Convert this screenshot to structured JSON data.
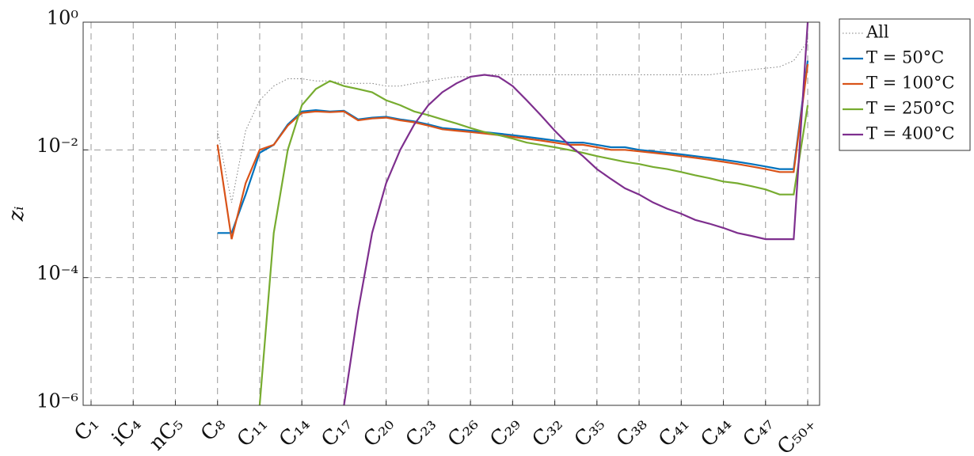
{
  "chart_data": {
    "type": "line",
    "y_label": "zᵢ",
    "yscale": "log",
    "grid": true,
    "legend": "outside-right-top",
    "categories": [
      "C₁",
      null,
      null,
      "iC₄",
      null,
      null,
      "nC₅",
      null,
      null,
      "C₈",
      null,
      null,
      "C₁₁",
      null,
      null,
      "C₁₄",
      null,
      null,
      "C₁₇",
      null,
      null,
      "C₂₀",
      null,
      null,
      "C₂₃",
      null,
      null,
      "C₂₆",
      null,
      null,
      "C₂₉",
      null,
      null,
      "C₃₂",
      null,
      null,
      "C₃₅",
      null,
      null,
      "C₃₈",
      null,
      null,
      "C₄₁",
      null,
      null,
      "C₄₄",
      null,
      null,
      "C₄₇",
      null,
      null,
      "C₅₀₊"
    ],
    "ylim": [
      1e-06,
      1
    ],
    "yticks": [
      {
        "value": 1e-06,
        "label": "10⁻⁶"
      },
      {
        "value": 0.0001,
        "label": "10⁻⁴"
      },
      {
        "value": 0.01,
        "label": "10⁻²"
      },
      {
        "value": 1,
        "label": "10⁰"
      }
    ],
    "series": [
      {
        "name": "All",
        "color": "#808080",
        "dash": "dotted",
        "values": [
          null,
          null,
          null,
          null,
          null,
          null,
          null,
          null,
          null,
          0.02,
          0.0015,
          0.02,
          0.06,
          0.1,
          0.13,
          0.13,
          0.12,
          0.12,
          0.11,
          0.11,
          0.11,
          0.1,
          0.1,
          0.11,
          0.12,
          0.13,
          0.14,
          0.14,
          0.15,
          0.15,
          0.15,
          0.15,
          0.15,
          0.15,
          0.15,
          0.15,
          0.15,
          0.15,
          0.15,
          0.15,
          0.15,
          0.15,
          0.15,
          0.15,
          0.15,
          0.16,
          0.17,
          0.18,
          0.19,
          0.2,
          0.25,
          0.5
        ]
      },
      {
        "name": "T = 50°C",
        "color": "#0072bd",
        "dash": "solid",
        "values": [
          null,
          null,
          null,
          null,
          null,
          null,
          null,
          null,
          null,
          0.0005,
          0.0005,
          0.002,
          0.009,
          0.012,
          0.025,
          0.04,
          0.042,
          0.04,
          0.041,
          0.03,
          0.032,
          0.033,
          0.03,
          0.028,
          0.025,
          0.022,
          0.021,
          0.02,
          0.019,
          0.018,
          0.017,
          0.016,
          0.015,
          0.014,
          0.013,
          0.013,
          0.012,
          0.011,
          0.011,
          0.01,
          0.0095,
          0.009,
          0.0085,
          0.008,
          0.0075,
          0.007,
          0.0065,
          0.006,
          0.0055,
          0.005,
          0.005,
          0.25
        ]
      },
      {
        "name": "T = 100°C",
        "color": "#d95319",
        "dash": "solid",
        "values": [
          null,
          null,
          null,
          null,
          null,
          null,
          null,
          null,
          null,
          0.012,
          0.0004,
          0.003,
          0.01,
          0.012,
          0.024,
          0.038,
          0.04,
          0.039,
          0.04,
          0.029,
          0.031,
          0.032,
          0.029,
          0.027,
          0.024,
          0.021,
          0.02,
          0.019,
          0.018,
          0.017,
          0.016,
          0.015,
          0.014,
          0.013,
          0.012,
          0.012,
          0.011,
          0.01,
          0.01,
          0.0095,
          0.009,
          0.0085,
          0.008,
          0.0075,
          0.007,
          0.0065,
          0.006,
          0.0055,
          0.005,
          0.0045,
          0.0045,
          0.22
        ]
      },
      {
        "name": "T = 250°C",
        "color": "#77ac30",
        "dash": "solid",
        "values": [
          null,
          null,
          null,
          null,
          null,
          null,
          null,
          null,
          null,
          null,
          null,
          null,
          1e-06,
          0.0005,
          0.01,
          0.05,
          0.09,
          0.12,
          0.1,
          0.09,
          0.08,
          0.06,
          0.05,
          0.04,
          0.035,
          0.03,
          0.026,
          0.022,
          0.019,
          0.017,
          0.015,
          0.013,
          0.012,
          0.011,
          0.01,
          0.009,
          0.008,
          0.0072,
          0.0065,
          0.006,
          0.0054,
          0.005,
          0.0045,
          0.004,
          0.0036,
          0.0032,
          0.003,
          0.0027,
          0.0024,
          0.002,
          0.002,
          0.05
        ]
      },
      {
        "name": "T = 400°C",
        "color": "#7e2f8e",
        "dash": "solid",
        "values": [
          null,
          null,
          null,
          null,
          null,
          null,
          null,
          null,
          null,
          null,
          null,
          null,
          null,
          null,
          null,
          null,
          null,
          null,
          1e-06,
          3e-05,
          0.0005,
          0.003,
          0.01,
          0.025,
          0.05,
          0.08,
          0.11,
          0.14,
          0.15,
          0.14,
          0.1,
          0.06,
          0.035,
          0.02,
          0.012,
          0.008,
          0.005,
          0.0035,
          0.0025,
          0.002,
          0.0015,
          0.0012,
          0.001,
          0.0008,
          0.0007,
          0.0006,
          0.0005,
          0.00045,
          0.0004,
          0.0004,
          0.0004,
          1
        ]
      }
    ]
  }
}
